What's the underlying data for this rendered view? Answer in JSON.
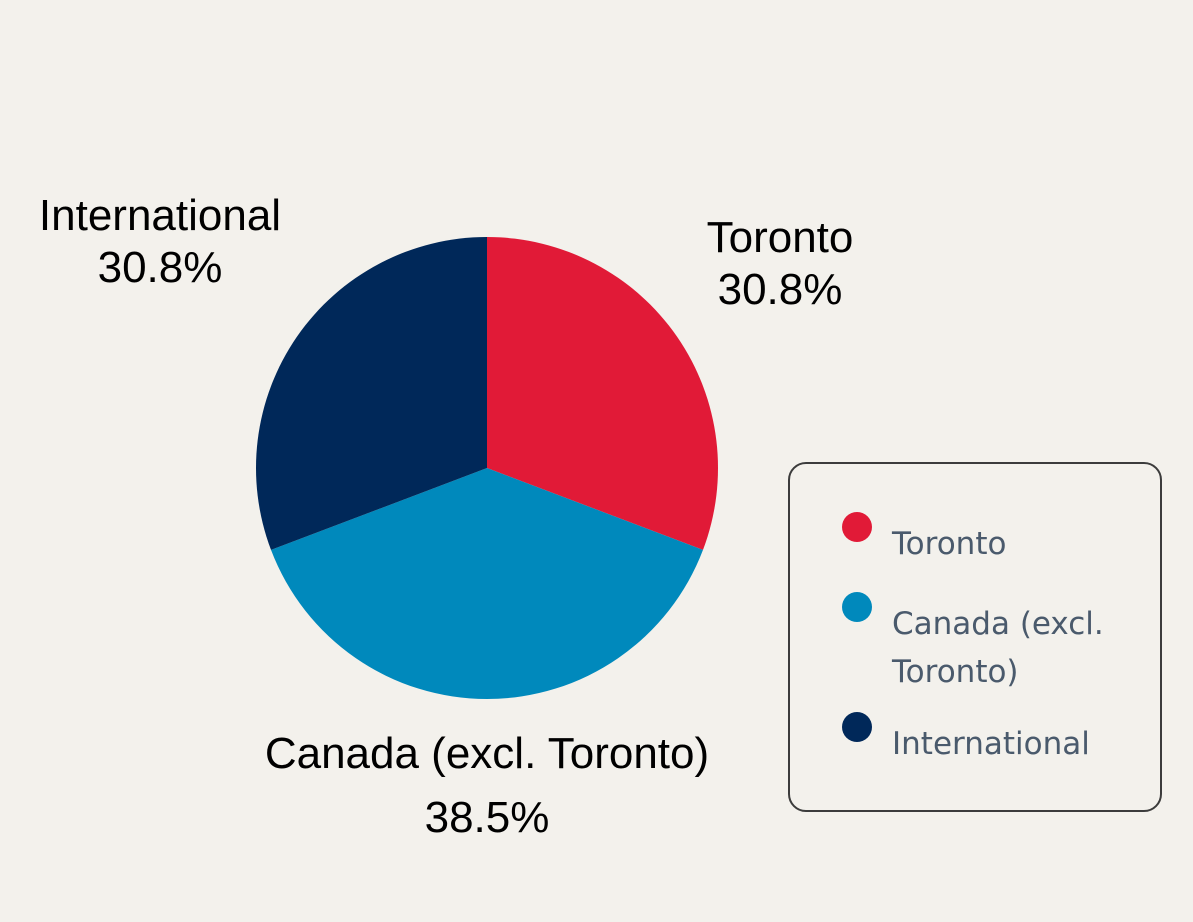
{
  "chart_data": {
    "type": "pie",
    "categories": [
      "Toronto",
      "Canada (excl. Toronto)",
      "International"
    ],
    "values": [
      30.8,
      38.5,
      30.8
    ],
    "labels": [
      {
        "name": "Toronto",
        "value": "30.8%"
      },
      {
        "name": "Canada (excl. Toronto)",
        "value": "38.5%"
      },
      {
        "name": "International",
        "value": "30.8%"
      }
    ],
    "colors": [
      "#e11a37",
      "#0089bc",
      "#002859"
    ],
    "legend": {
      "placement": "right",
      "items": [
        "Toronto",
        "Canada (excl.\nToronto)",
        "International"
      ]
    }
  }
}
